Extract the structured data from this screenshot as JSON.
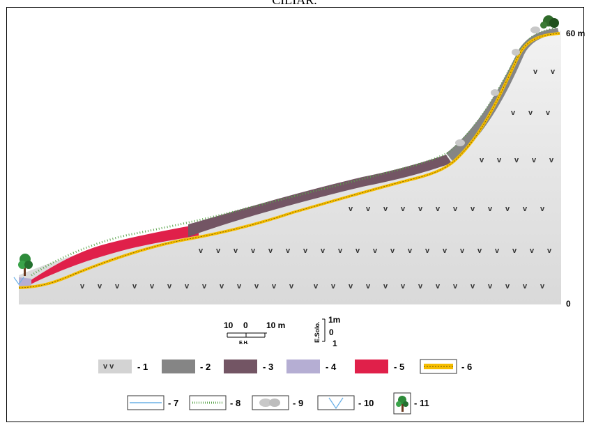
{
  "caption": "CILIAR.",
  "elevation_labels": {
    "top": "60 m",
    "bottom": "0"
  },
  "horizontal_scale": {
    "left": "10",
    "zero": "0",
    "right": "10 m",
    "name": "E.H."
  },
  "soil_scale": {
    "name": "E.Solo.",
    "top": "1m",
    "mid": "0",
    "bottom": "1"
  },
  "weathered_rock_mark": "v v",
  "legend": [
    {
      "label": "- 1",
      "name": "weathered-rock"
    },
    {
      "label": "- 2",
      "name": "grey-layer",
      "color": "#858585"
    },
    {
      "label": "- 3",
      "name": "brown-layer",
      "color": "#735564"
    },
    {
      "label": "- 4",
      "name": "lilac-layer",
      "color": "#b5aed3"
    },
    {
      "label": "- 5",
      "name": "red-layer",
      "color": "#e0204a"
    },
    {
      "label": "- 6",
      "name": "yellow-contact-line",
      "color": "#f5bd00"
    },
    {
      "label": "- 7",
      "name": "water-line",
      "color": "#6ab0e6"
    },
    {
      "label": "- 8",
      "name": "grass-line",
      "color": "#5aa34b"
    },
    {
      "label": "- 9",
      "name": "boulder"
    },
    {
      "label": "- 10",
      "name": "valley-symbol"
    },
    {
      "label": "- 11",
      "name": "tree"
    }
  ]
}
